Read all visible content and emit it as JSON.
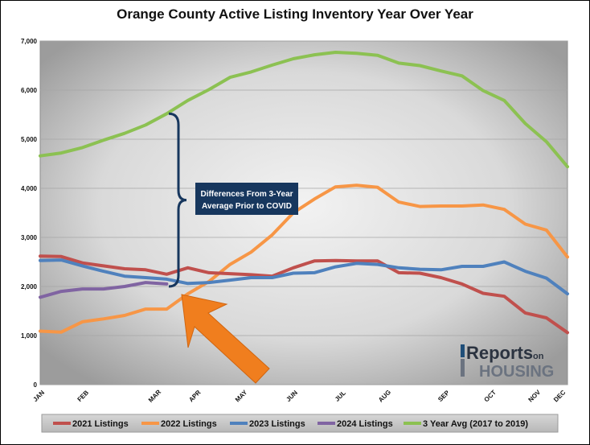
{
  "chart_data": {
    "type": "line",
    "title": "Orange County Active Listing Inventory Year Over Year",
    "ylim": [
      0,
      7000
    ],
    "yticks": [
      "0",
      "1,000",
      "2,000",
      "3,000",
      "4,000",
      "5,000",
      "6,000",
      "7,000"
    ],
    "month_labels": [
      "JAN",
      "FEB",
      "MAR",
      "APR",
      "MAY",
      "JUN",
      "JUL",
      "AUG",
      "SEP",
      "OCT",
      "NOV",
      "DEC"
    ],
    "grid": true,
    "legend_position": "bottom",
    "series": [
      {
        "name": "2021 Listings",
        "color": "#c0504d",
        "values": [
          2620,
          2610,
          2480,
          2420,
          2360,
          2340,
          2250,
          2380,
          2280,
          2260,
          2240,
          2210,
          2380,
          2520,
          2530,
          2520,
          2520,
          2280,
          2270,
          2180,
          2050,
          1860,
          1800,
          1460,
          1360,
          1060
        ]
      },
      {
        "name": "2022 Listings",
        "color": "#f79646",
        "values": [
          1090,
          1070,
          1280,
          1340,
          1410,
          1540,
          1540,
          1850,
          2100,
          2450,
          2700,
          3050,
          3500,
          3780,
          4030,
          4060,
          4020,
          3720,
          3630,
          3640,
          3640,
          3660,
          3570,
          3270,
          3150,
          2600
        ]
      },
      {
        "name": "2023 Listings",
        "color": "#4f81bd",
        "values": [
          2530,
          2540,
          2420,
          2310,
          2210,
          2180,
          2150,
          2060,
          2080,
          2130,
          2180,
          2180,
          2270,
          2280,
          2400,
          2470,
          2450,
          2380,
          2350,
          2340,
          2410,
          2410,
          2500,
          2310,
          2170,
          1850
        ]
      },
      {
        "name": "2024 Listings",
        "color": "#8064a2",
        "values": [
          1780,
          1900,
          1950,
          1950,
          2000,
          2080,
          2050
        ]
      },
      {
        "name": "3 Year Avg (2017 to 2019)",
        "color": "#8cc152",
        "values": [
          4660,
          4720,
          4830,
          4980,
          5120,
          5290,
          5520,
          5790,
          6010,
          6260,
          6370,
          6510,
          6640,
          6720,
          6770,
          6750,
          6710,
          6550,
          6500,
          6390,
          6290,
          5990,
          5790,
          5320,
          4950,
          4440
        ]
      }
    ],
    "annotation": {
      "line1": "Differences From 3-Year",
      "line2": "Average Prior to COVID",
      "brace_top_value": 5520,
      "brace_bottom_value": 2000,
      "box_color": "#17375e"
    },
    "arrow_color": "#f07e1e"
  },
  "logo": {
    "part1": "Reports",
    "part2": "on",
    "part3": "HOUSING"
  }
}
